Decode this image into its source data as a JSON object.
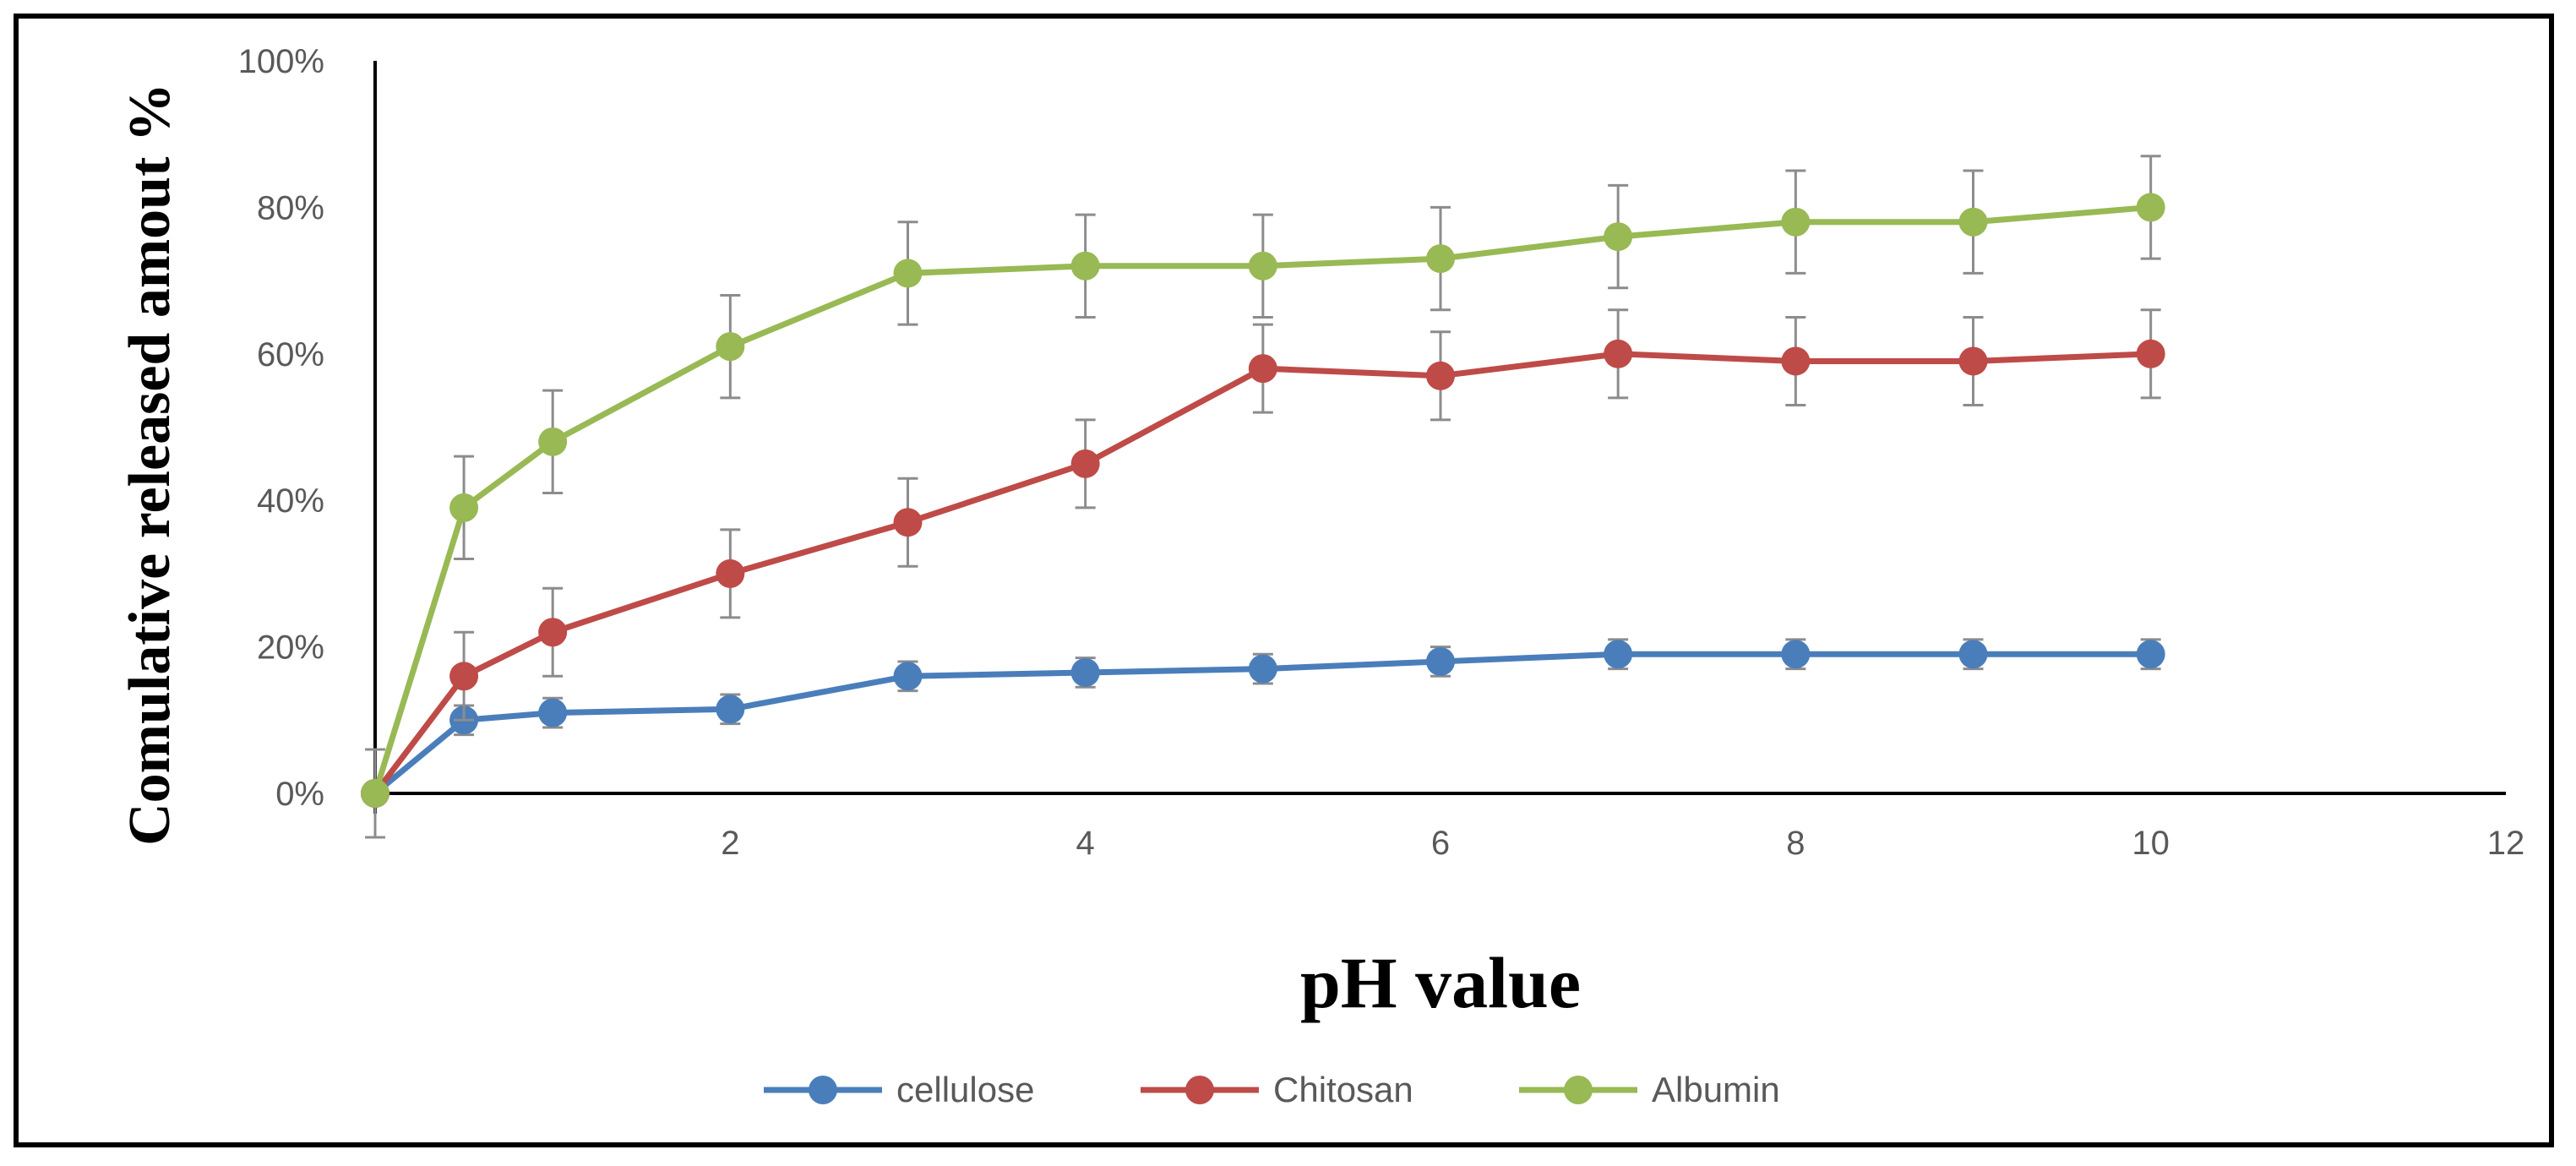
{
  "chart_data": {
    "type": "line",
    "title": "",
    "xlabel": "pH value",
    "ylabel": "Comulative released amout %",
    "xlim": [
      0,
      12
    ],
    "ylim": [
      0,
      100
    ],
    "x_ticks": [
      2,
      4,
      6,
      8,
      10,
      12
    ],
    "x_tick_labels": [
      "2",
      "4",
      "6",
      "8",
      "10",
      "12"
    ],
    "y_ticks": [
      0,
      20,
      40,
      60,
      80,
      100
    ],
    "y_tick_labels": [
      "0%",
      "20%",
      "40%",
      "60%",
      "80%",
      "100%"
    ],
    "grid": false,
    "legend_position": "bottom",
    "x": [
      0,
      0.5,
      1,
      2,
      3,
      4,
      5,
      6,
      7,
      8,
      9,
      10
    ],
    "series": [
      {
        "name": "cellulose",
        "color": "#4a7ebb",
        "values": [
          0,
          10,
          11,
          11.5,
          16,
          16.5,
          17,
          18,
          19,
          19,
          19,
          19
        ],
        "error": [
          6,
          2,
          2,
          2,
          2,
          2,
          2,
          2,
          2,
          2,
          2,
          2
        ]
      },
      {
        "name": "Chitosan",
        "color": "#be4b48",
        "values": [
          0,
          16,
          22,
          30,
          37,
          45,
          58,
          57,
          60,
          59,
          59,
          60
        ],
        "error": [
          6,
          6,
          6,
          6,
          6,
          6,
          6,
          6,
          6,
          6,
          6,
          6
        ]
      },
      {
        "name": "Albumin",
        "color": "#98b954",
        "values": [
          0,
          39,
          48,
          61,
          71,
          72,
          72,
          73,
          76,
          78,
          78,
          80
        ],
        "error": [
          6,
          7,
          7,
          7,
          7,
          7,
          7,
          7,
          7,
          7,
          7,
          7
        ]
      }
    ]
  }
}
